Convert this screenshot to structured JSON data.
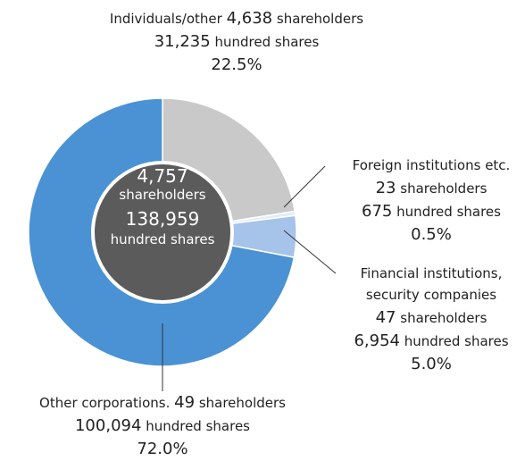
{
  "chart_data": {
    "type": "pie",
    "categories": [
      "Individuals/other",
      "Foreign institutions etc.",
      "Financial institutions, security companies",
      "Other corporations."
    ],
    "values": [
      22.5,
      0.5,
      5.0,
      72.0
    ],
    "value_labels": [
      "22.5%",
      "0.5%",
      "5.0%",
      "72.0%"
    ],
    "colors": [
      "#c9c9c9",
      "#e4ecf6",
      "#a6c3ea",
      "#4a92d4"
    ],
    "shareholders": [
      "4,638",
      "23",
      "47",
      "49"
    ],
    "shares": [
      "31,235",
      "675",
      "6,954",
      "100,094"
    ],
    "shareholders_unit": "shareholders",
    "shares_unit": "hundred shares",
    "center": {
      "shareholders": "4,757",
      "shares": "138,959"
    }
  }
}
